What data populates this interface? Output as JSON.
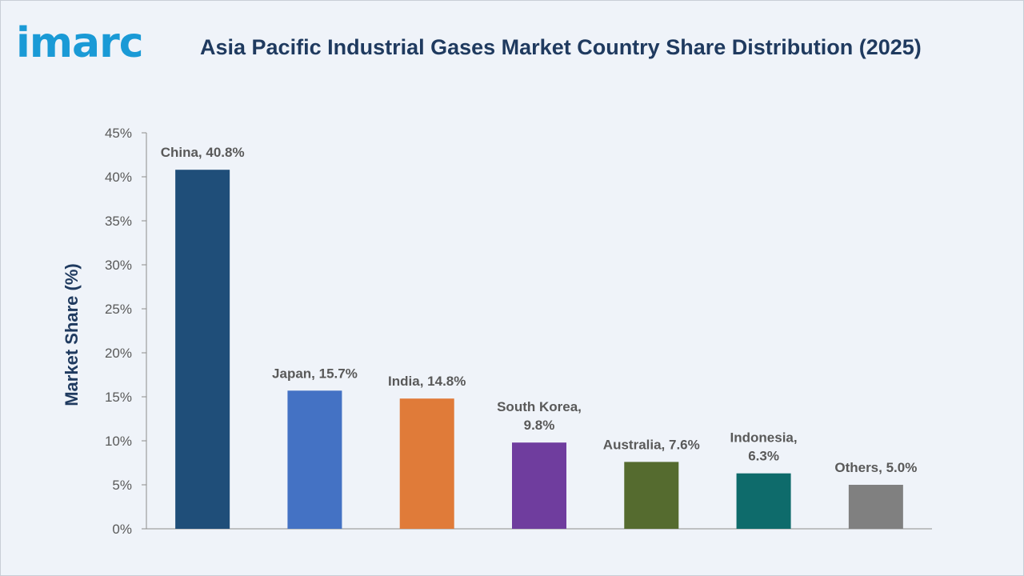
{
  "logo": "imarc",
  "chart_data": {
    "type": "bar",
    "title": "Asia Pacific Industrial Gases Market Country Share Distribution (2025)",
    "ylabel": "Market Share (%)",
    "xlabel": "",
    "ylim": [
      0,
      45
    ],
    "yticks": [
      "0%",
      "5%",
      "10%",
      "15%",
      "20%",
      "25%",
      "30%",
      "35%",
      "40%",
      "45%"
    ],
    "grid": false,
    "categories": [
      "China",
      "Japan",
      "India",
      "South Korea",
      "Australia",
      "Indonesia",
      "Others"
    ],
    "values": [
      40.8,
      15.7,
      14.8,
      9.8,
      7.6,
      6.3,
      5.0
    ],
    "data_labels": [
      [
        "China, 40.8%"
      ],
      [
        "Japan, 15.7%"
      ],
      [
        "India, 14.8%"
      ],
      [
        "South Korea,",
        "9.8%"
      ],
      [
        "Australia, 7.6%"
      ],
      [
        "Indonesia,",
        "6.3%"
      ],
      [
        "Others, 5.0%"
      ]
    ],
    "colors": [
      "#1f4e79",
      "#4472c4",
      "#e07b39",
      "#6f3d9e",
      "#556b2f",
      "#0e6b6b",
      "#808080"
    ]
  }
}
